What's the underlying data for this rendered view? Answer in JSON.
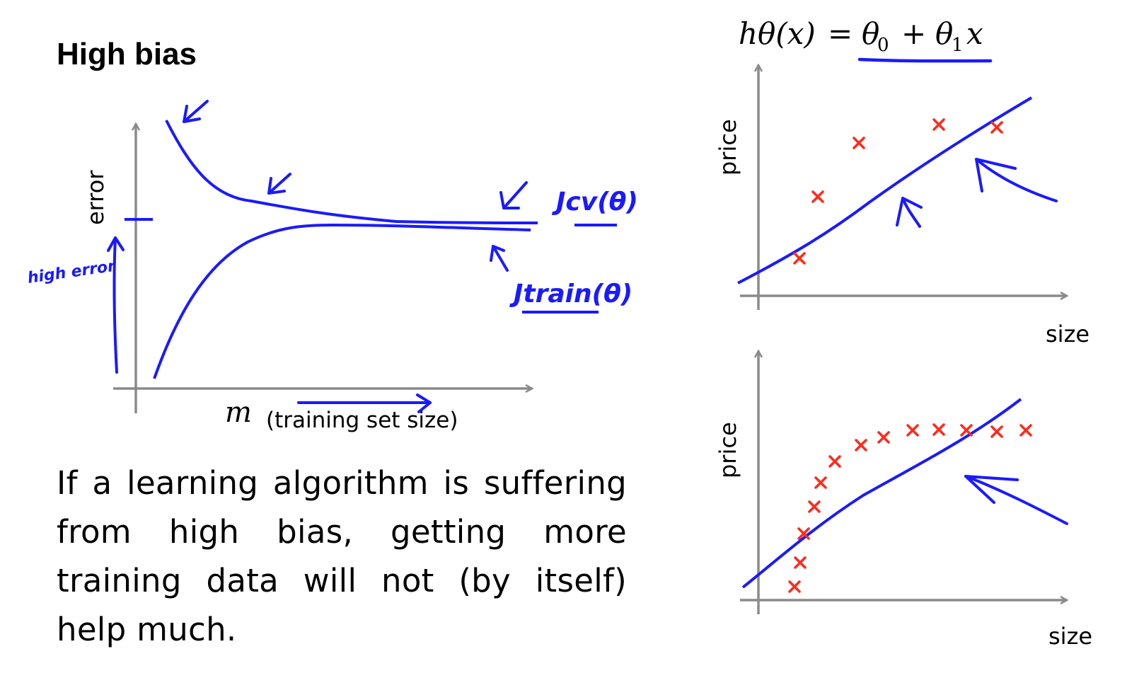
{
  "slide": {
    "title": "High bias",
    "body_text": "If a learning algorithm is suffering from high bias, getting more training data will not (by itself) help much."
  },
  "learning_curve": {
    "y_axis_label": "error",
    "x_axis_symbol": "m",
    "x_axis_label": "(training set size)",
    "annotations": {
      "cv_curve": "Jcv(θ)",
      "train_curve": "Jtrain(θ)",
      "high_error": "high error"
    }
  },
  "hypothesis": {
    "lhs": "hθ(x)",
    "equals": "=",
    "theta0": "θ",
    "sub0": "0",
    "plus": "+",
    "theta1": "θ",
    "sub1": "1",
    "x": "x"
  },
  "scatter_top": {
    "y_axis_label": "price",
    "x_axis_label": "size"
  },
  "scatter_bottom": {
    "y_axis_label": "price",
    "x_axis_label": "size"
  },
  "colors": {
    "ink_blue": "#1a1aff",
    "data_red": "#ff2a1a",
    "axis_gray": "#8a8a8a"
  }
}
